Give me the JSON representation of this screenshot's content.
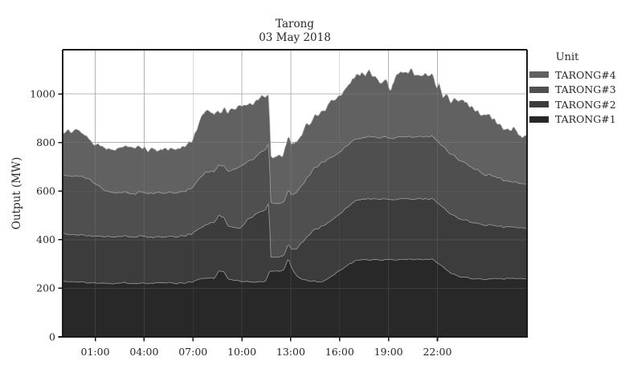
{
  "title": {
    "line1": "Tarong",
    "line2": "03 May 2018"
  },
  "axes": {
    "ylabel": "Output (MW)",
    "x_tick_labels": [
      "01:00",
      "04:00",
      "07:00",
      "10:00",
      "13:00",
      "16:00",
      "19:00",
      "22:00"
    ],
    "x_tick_hours": [
      1,
      4,
      7,
      10,
      13,
      16,
      19,
      22
    ],
    "y_ticks_mw": [
      0,
      200,
      400,
      600,
      800,
      1000
    ],
    "x_domain_hours": [
      -1,
      27.5
    ],
    "y_domain_mw": [
      0,
      1182
    ]
  },
  "legend": {
    "title": "Unit"
  },
  "colors": {
    "background": "#ffffff",
    "grid": "#b4b4b4",
    "spine": "#1a1a1a",
    "text": "#262626",
    "area_edge": "#a9a9a9"
  },
  "chart_data": {
    "type": "area",
    "stacked": true,
    "title": "Tarong",
    "subtitle": "03 May 2018",
    "ylabel": "Output (MW)",
    "x_unit": "hours (relative to 03 May 00:00)",
    "y_unit": "MW",
    "legend_position": "right",
    "grid": true,
    "series": [
      {
        "name": "TARONG#1",
        "color": "#282828",
        "points": [
          [
            -1,
            228
          ],
          [
            0,
            226
          ],
          [
            1,
            222
          ],
          [
            2,
            221
          ],
          [
            3,
            222
          ],
          [
            4,
            221
          ],
          [
            5,
            222
          ],
          [
            6,
            221
          ],
          [
            6.5,
            222
          ],
          [
            7,
            228
          ],
          [
            7.5,
            240
          ],
          [
            8,
            244
          ],
          [
            8.3,
            240
          ],
          [
            8.6,
            272
          ],
          [
            8.9,
            268
          ],
          [
            9.2,
            235
          ],
          [
            9.85,
            230
          ],
          [
            10.3,
            228
          ],
          [
            10.9,
            226
          ],
          [
            11.45,
            230
          ],
          [
            11.7,
            268
          ],
          [
            12,
            272
          ],
          [
            12.3,
            268
          ],
          [
            12.6,
            278
          ],
          [
            12.85,
            324
          ],
          [
            13.1,
            280
          ],
          [
            13.35,
            250
          ],
          [
            13.7,
            238
          ],
          [
            14.2,
            231
          ],
          [
            14.9,
            225
          ],
          [
            15.4,
            245
          ],
          [
            16,
            271
          ],
          [
            16.5,
            295
          ],
          [
            17,
            314
          ],
          [
            17.5,
            318
          ],
          [
            18,
            316
          ],
          [
            19,
            318
          ],
          [
            20,
            320
          ],
          [
            21,
            318
          ],
          [
            21.7,
            320
          ],
          [
            22.2,
            295
          ],
          [
            22.7,
            268
          ],
          [
            23.4,
            248
          ],
          [
            24,
            240
          ],
          [
            25,
            238
          ],
          [
            26,
            240
          ],
          [
            26.7,
            241
          ],
          [
            27.5,
            240
          ]
        ]
      },
      {
        "name": "TARONG#2",
        "color": "#3c3c3c",
        "points": [
          [
            -1,
            196
          ],
          [
            0,
            194
          ],
          [
            1,
            193
          ],
          [
            2,
            192
          ],
          [
            3,
            191
          ],
          [
            4,
            192
          ],
          [
            5,
            190
          ],
          [
            6,
            192
          ],
          [
            6.6,
            193
          ],
          [
            7,
            200
          ],
          [
            7.5,
            212
          ],
          [
            8,
            225
          ],
          [
            8.6,
            230
          ],
          [
            9.2,
            218
          ],
          [
            9.85,
            216
          ],
          [
            10.3,
            250
          ],
          [
            10.8,
            279
          ],
          [
            11.2,
            290
          ],
          [
            11.5,
            293
          ],
          [
            11.65,
            292
          ],
          [
            11.78,
            58
          ],
          [
            12,
            56
          ],
          [
            12.4,
            60
          ],
          [
            12.8,
            58
          ],
          [
            13,
            70
          ],
          [
            13.3,
            105
          ],
          [
            13.6,
            140
          ],
          [
            14,
            180
          ],
          [
            14.4,
            210
          ],
          [
            14.9,
            228
          ],
          [
            15.5,
            232
          ],
          [
            16,
            234
          ],
          [
            16.5,
            240
          ],
          [
            17,
            247
          ],
          [
            17.5,
            250
          ],
          [
            18,
            250
          ],
          [
            19,
            249
          ],
          [
            20,
            250
          ],
          [
            21,
            250
          ],
          [
            21.7,
            248
          ],
          [
            22.3,
            244
          ],
          [
            23.4,
            237
          ],
          [
            24.2,
            230
          ],
          [
            25,
            224
          ],
          [
            26,
            215
          ],
          [
            26.7,
            211
          ],
          [
            27.5,
            208
          ]
        ]
      },
      {
        "name": "TARONG#3",
        "color": "#4f4f4f",
        "points": [
          [
            -1,
            239
          ],
          [
            0,
            241
          ],
          [
            0.5,
            235
          ],
          [
            1,
            215
          ],
          [
            1.5,
            195
          ],
          [
            1.8,
            182
          ],
          [
            2.5,
            181
          ],
          [
            3.5,
            180
          ],
          [
            4.5,
            182
          ],
          [
            5.5,
            180
          ],
          [
            6.5,
            181
          ],
          [
            7,
            190
          ],
          [
            7.4,
            205
          ],
          [
            7.8,
            218
          ],
          [
            8.3,
            210
          ],
          [
            8.7,
            206
          ],
          [
            9.3,
            230
          ],
          [
            9.85,
            254
          ],
          [
            10.3,
            240
          ],
          [
            10.8,
            232
          ],
          [
            11.2,
            245
          ],
          [
            11.6,
            248
          ],
          [
            11.8,
            222
          ],
          [
            12.2,
            220
          ],
          [
            12.7,
            222
          ],
          [
            13.2,
            228
          ],
          [
            13.7,
            235
          ],
          [
            14.2,
            248
          ],
          [
            14.9,
            264
          ],
          [
            15.5,
            258
          ],
          [
            16,
            254
          ],
          [
            17,
            254
          ],
          [
            18,
            256
          ],
          [
            19,
            255
          ],
          [
            20,
            257
          ],
          [
            21,
            256
          ],
          [
            21.7,
            257
          ],
          [
            22.5,
            250
          ],
          [
            23.4,
            241
          ],
          [
            24.2,
            225
          ],
          [
            25,
            208
          ],
          [
            25.8,
            196
          ],
          [
            26.7,
            185
          ],
          [
            27.5,
            182
          ]
        ]
      },
      {
        "name": "TARONG#4",
        "color": "#616161",
        "points": [
          [
            -1,
            182
          ],
          [
            0,
            187
          ],
          [
            0.7,
            165
          ],
          [
            1.5,
            173
          ],
          [
            2.5,
            184
          ],
          [
            3.5,
            182
          ],
          [
            4.5,
            182
          ],
          [
            5.5,
            180
          ],
          [
            6.5,
            186
          ],
          [
            7,
            190
          ],
          [
            7.3,
            222
          ],
          [
            7.6,
            244
          ],
          [
            8,
            246
          ],
          [
            8.6,
            223
          ],
          [
            9.2,
            240
          ],
          [
            9.85,
            255
          ],
          [
            10.3,
            237
          ],
          [
            10.8,
            223
          ],
          [
            11.2,
            227
          ],
          [
            11.6,
            212
          ],
          [
            11.75,
            185
          ],
          [
            12.1,
            200
          ],
          [
            12.5,
            190
          ],
          [
            12.85,
            230
          ],
          [
            13.2,
            200
          ],
          [
            13.6,
            215
          ],
          [
            14,
            218
          ],
          [
            14.5,
            220
          ],
          [
            14.9,
            214
          ],
          [
            15.5,
            228
          ],
          [
            16,
            231
          ],
          [
            16.5,
            242
          ],
          [
            17,
            258
          ],
          [
            17.5,
            262
          ],
          [
            17.8,
            266
          ],
          [
            18.2,
            250
          ],
          [
            18.6,
            215
          ],
          [
            18.9,
            235
          ],
          [
            19.15,
            200
          ],
          [
            19.45,
            262
          ],
          [
            19.9,
            260
          ],
          [
            20.2,
            263
          ],
          [
            20.4,
            288
          ],
          [
            20.6,
            262
          ],
          [
            21,
            258
          ],
          [
            21.4,
            255
          ],
          [
            21.7,
            250
          ],
          [
            21.9,
            215
          ],
          [
            22.1,
            255
          ],
          [
            22.35,
            205
          ],
          [
            22.6,
            240
          ],
          [
            22.85,
            215
          ],
          [
            23.1,
            240
          ],
          [
            23.4,
            258
          ],
          [
            23.8,
            245
          ],
          [
            24.2,
            243
          ],
          [
            24.6,
            240
          ],
          [
            25,
            258
          ],
          [
            25.4,
            235
          ],
          [
            25.8,
            222
          ],
          [
            26.2,
            210
          ],
          [
            26.7,
            221
          ],
          [
            27,
            205
          ],
          [
            27.2,
            190
          ],
          [
            27.5,
            208
          ]
        ]
      }
    ]
  }
}
